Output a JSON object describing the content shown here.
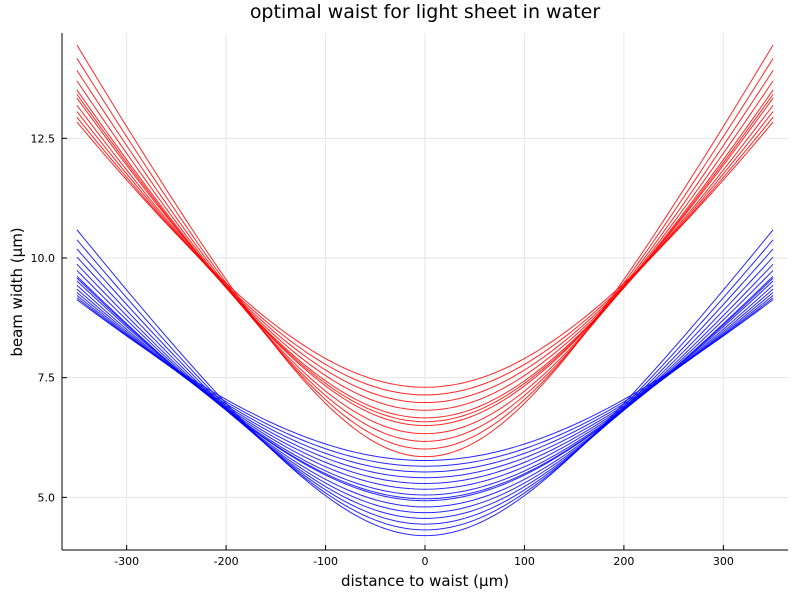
{
  "chart_data": {
    "type": "line",
    "title": "optimal waist for light sheet in water",
    "xlabel": "distance to waist (μm)",
    "ylabel": "beam width (μm)",
    "xlim": [
      -365,
      365
    ],
    "ylim": [
      3.9,
      14.7
    ],
    "xticks": [
      -300,
      -200,
      -100,
      0,
      100,
      200,
      300
    ],
    "xtick_labels": [
      "-300",
      "-200",
      "-100",
      "0",
      "100",
      "200",
      "300"
    ],
    "yticks": [
      5.0,
      7.5,
      10.0,
      12.5
    ],
    "ytick_labels": [
      "5.0",
      "7.5",
      "10.0",
      "12.5"
    ],
    "grid": true,
    "legend": "none",
    "x_range": [
      -350,
      350
    ],
    "colors": {
      "red_group": "#ff0000",
      "blue_group": "#0000ff"
    },
    "series": [
      {
        "color": "#0000ff",
        "x": [
          -350,
          0,
          350
        ],
        "y": [
          10.59,
          4.2,
          10.59
        ]
      },
      {
        "color": "#0000ff",
        "x": [
          -350,
          0,
          350
        ],
        "y": [
          10.38,
          4.32,
          10.38
        ]
      },
      {
        "color": "#0000ff",
        "x": [
          -350,
          0,
          350
        ],
        "y": [
          10.19,
          4.44,
          10.19
        ]
      },
      {
        "color": "#0000ff",
        "x": [
          -350,
          0,
          350
        ],
        "y": [
          10.02,
          4.56,
          10.02
        ]
      },
      {
        "color": "#0000ff",
        "x": [
          -350,
          0,
          350
        ],
        "y": [
          9.87,
          4.68,
          9.87
        ]
      },
      {
        "color": "#0000ff",
        "x": [
          -350,
          0,
          350
        ],
        "y": [
          9.74,
          4.8,
          9.74
        ]
      },
      {
        "color": "#0000ff",
        "x": [
          -350,
          0,
          350
        ],
        "y": [
          9.62,
          4.93,
          9.62
        ]
      },
      {
        "color": "#0000ff",
        "x": [
          -350,
          0,
          350
        ],
        "y": [
          9.58,
          4.97,
          9.58
        ]
      },
      {
        "color": "#0000ff",
        "x": [
          -350,
          0,
          350
        ],
        "y": [
          9.52,
          5.05,
          9.52
        ]
      },
      {
        "color": "#0000ff",
        "x": [
          -350,
          0,
          350
        ],
        "y": [
          9.43,
          5.17,
          9.43
        ]
      },
      {
        "color": "#0000ff",
        "x": [
          -350,
          0,
          350
        ],
        "y": [
          9.35,
          5.29,
          9.35
        ]
      },
      {
        "color": "#0000ff",
        "x": [
          -350,
          0,
          350
        ],
        "y": [
          9.28,
          5.41,
          9.28
        ]
      },
      {
        "color": "#0000ff",
        "x": [
          -350,
          0,
          350
        ],
        "y": [
          9.22,
          5.53,
          9.22
        ]
      },
      {
        "color": "#0000ff",
        "x": [
          -350,
          0,
          350
        ],
        "y": [
          9.17,
          5.65,
          9.17
        ]
      },
      {
        "color": "#0000ff",
        "x": [
          -350,
          0,
          350
        ],
        "y": [
          9.13,
          5.77,
          9.13
        ]
      },
      {
        "color": "#ff0000",
        "x": [
          -350,
          0,
          350
        ],
        "y": [
          14.45,
          5.85,
          14.45
        ]
      },
      {
        "color": "#ff0000",
        "x": [
          -350,
          0,
          350
        ],
        "y": [
          14.17,
          6.01,
          14.17
        ]
      },
      {
        "color": "#ff0000",
        "x": [
          -350,
          0,
          350
        ],
        "y": [
          13.92,
          6.17,
          13.92
        ]
      },
      {
        "color": "#ff0000",
        "x": [
          -350,
          0,
          350
        ],
        "y": [
          13.7,
          6.33,
          13.7
        ]
      },
      {
        "color": "#ff0000",
        "x": [
          -350,
          0,
          350
        ],
        "y": [
          13.51,
          6.5,
          13.51
        ]
      },
      {
        "color": "#ff0000",
        "x": [
          -350,
          0,
          350
        ],
        "y": [
          13.42,
          6.58,
          13.42
        ]
      },
      {
        "color": "#ff0000",
        "x": [
          -350,
          0,
          350
        ],
        "y": [
          13.34,
          6.66,
          13.34
        ]
      },
      {
        "color": "#ff0000",
        "x": [
          -350,
          0,
          350
        ],
        "y": [
          13.19,
          6.82,
          13.19
        ]
      },
      {
        "color": "#ff0000",
        "x": [
          -350,
          0,
          350
        ],
        "y": [
          13.06,
          6.98,
          13.06
        ]
      },
      {
        "color": "#ff0000",
        "x": [
          -350,
          0,
          350
        ],
        "y": [
          12.94,
          7.14,
          12.94
        ]
      },
      {
        "color": "#ff0000",
        "x": [
          -350,
          0,
          350
        ],
        "y": [
          12.84,
          7.3,
          12.84
        ]
      }
    ]
  }
}
